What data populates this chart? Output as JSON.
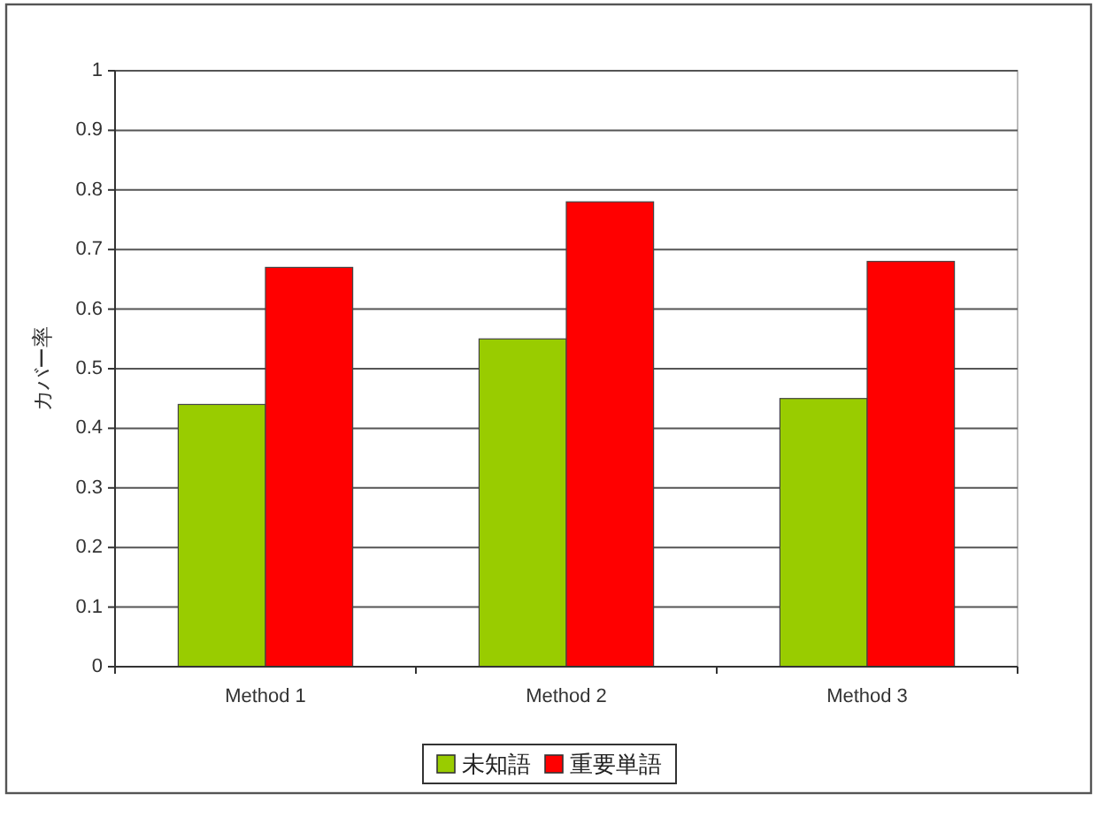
{
  "chart_data": {
    "type": "bar",
    "categories": [
      "Method 1",
      "Method 2",
      "Method 3"
    ],
    "series": [
      {
        "name": "未知語",
        "color": "#99cc00",
        "values": [
          0.44,
          0.55,
          0.45
        ]
      },
      {
        "name": "重要単語",
        "color": "#ff0000",
        "values": [
          0.67,
          0.78,
          0.68
        ]
      }
    ],
    "ylabel": "カバー率",
    "ylim": [
      0,
      1
    ],
    "yticks": [
      0,
      0.1,
      0.2,
      0.3,
      0.4,
      0.5,
      0.6,
      0.7,
      0.8,
      0.9,
      1
    ],
    "grid": "y",
    "legend": "bottom"
  }
}
